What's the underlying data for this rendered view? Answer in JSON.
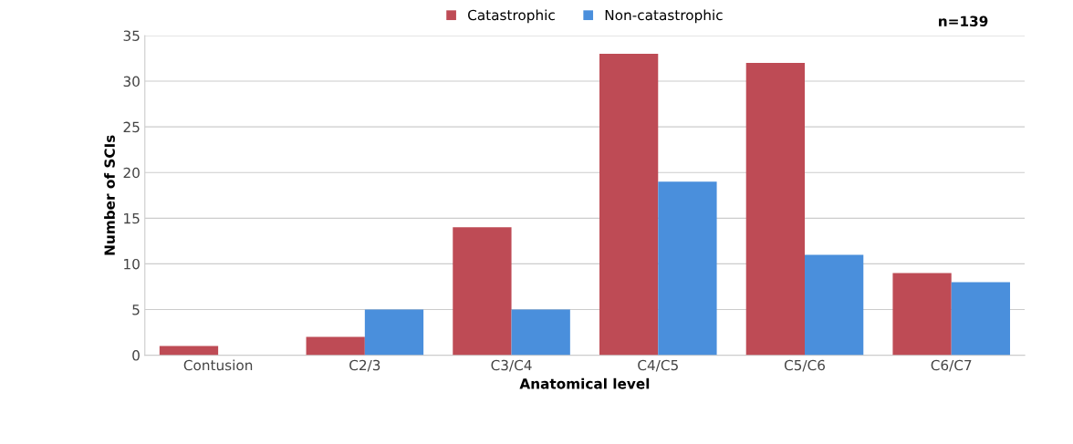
{
  "chart_data": {
    "type": "bar",
    "xlabel": "Anatomical level",
    "ylabel": "Number of SCIs",
    "categories": [
      "Contusion",
      "C2/3",
      "C3/C4",
      "C4/C5",
      "C5/C6",
      "C6/C7"
    ],
    "series": [
      {
        "name": "Catastrophic",
        "color": "#be4b55",
        "values": [
          1,
          2,
          14,
          33,
          32,
          9
        ]
      },
      {
        "name": "Non-catastrophic",
        "color": "#4a8fdc",
        "values": [
          0,
          5,
          5,
          19,
          11,
          8
        ]
      }
    ],
    "ylim": [
      0,
      35
    ],
    "yticks": [
      0,
      5,
      10,
      15,
      20,
      25,
      30,
      35
    ],
    "grid": "y",
    "legend": "top",
    "annotations": [
      "n=139"
    ]
  }
}
